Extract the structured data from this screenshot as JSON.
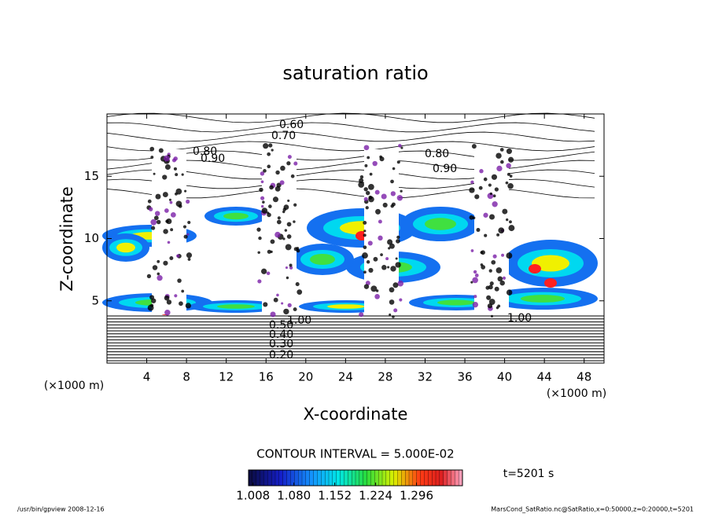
{
  "chart_data": {
    "type": "contour",
    "title": "saturation ratio",
    "x_label": "X-coordinate",
    "y_label": "Z-coordinate",
    "x_unit": "(×1000 m)",
    "y_unit": "(×1000 m)",
    "xlim": [
      0,
      50
    ],
    "xticks": [
      4,
      8,
      12,
      16,
      20,
      24,
      28,
      32,
      36,
      40,
      44,
      48
    ],
    "ylim": [
      0,
      20
    ],
    "yticks": [
      5,
      10,
      15
    ],
    "contour_labels": [
      "0.60",
      "0.70",
      "0.80",
      "0.90",
      "0.80",
      "0.90",
      "1.00",
      "1.00",
      "0.20",
      "0.30",
      "0.40",
      "0.50"
    ],
    "contour_interval": "CONTOUR INTERVAL = 5.000E-02",
    "time_label": "t=5201 s",
    "colorbar": {
      "clim": [
        1.0,
        1.377
      ],
      "ticks": [
        1.008,
        {
          "value": 1.08,
          "label": "1.080"
        },
        1.152,
        1.224,
        1.296
      ]
    },
    "footer_left": "/usr/bin/gpview   2008-12-16",
    "footer_right": "MarsCond_SatRatio.nc@SatRatio,x=0:50000,z=0:20000,t=5201"
  }
}
